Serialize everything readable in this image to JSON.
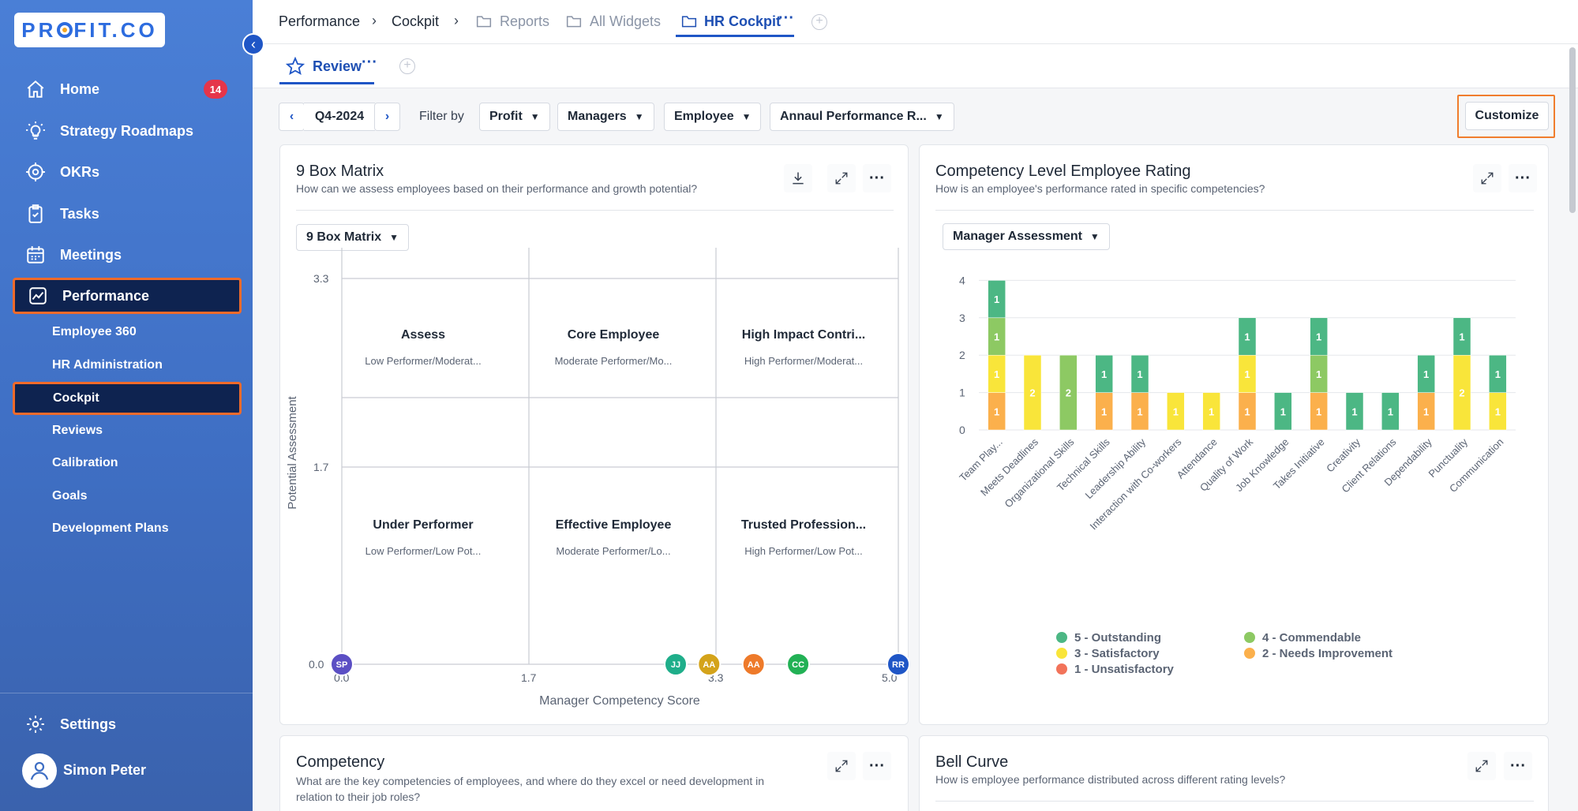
{
  "brand": {
    "logo_text_pre": "PR",
    "logo_text_post": "FIT.CO"
  },
  "sidebar": {
    "items": [
      {
        "label": "Home",
        "icon": "home-icon",
        "badge": "14"
      },
      {
        "label": "Strategy Roadmaps",
        "icon": "lightbulb-icon"
      },
      {
        "label": "OKRs",
        "icon": "target-icon"
      },
      {
        "label": "Tasks",
        "icon": "clipboard-icon"
      },
      {
        "label": "Meetings",
        "icon": "calendar-icon"
      },
      {
        "label": "Performance",
        "icon": "chart-line-icon",
        "active": true
      }
    ],
    "sub_items": [
      "Employee 360",
      "HR Administration",
      "Cockpit",
      "Reviews",
      "Calibration",
      "Goals",
      "Development Plans"
    ],
    "active_sub": "Cockpit",
    "settings_label": "Settings",
    "user_name": "Simon Peter"
  },
  "breadcrumb": {
    "performance": "Performance",
    "cockpit": "Cockpit",
    "reports": "Reports",
    "all_widgets": "All Widgets",
    "hr_cockpit": "HR Cockpit"
  },
  "subtab": {
    "label": "Review"
  },
  "filters": {
    "period": "Q4-2024",
    "filter_by": "Filter by",
    "profit": "Profit",
    "managers": "Managers",
    "employee": "Employee",
    "annual": "Annaul Performance R...",
    "customize": "Customize"
  },
  "nine_box": {
    "title": "9 Box Matrix",
    "subtitle": "How can we assess employees based on their performance and growth potential?",
    "dropdown": "9 Box Matrix",
    "y_axis_label": "Potential Assessment",
    "x_axis_label": "Manager Competency Score",
    "y_ticks": [
      "3.3",
      "1.7",
      "0.0"
    ],
    "x_ticks": [
      "0.0",
      "1.7",
      "3.3",
      "5.0"
    ],
    "boxes": [
      {
        "title": "Assess",
        "sub": "Low Performer/Moderat..."
      },
      {
        "title": "Core Employee",
        "sub": "Moderate Performer/Mo..."
      },
      {
        "title": "High Impact Contri...",
        "sub": "High Performer/Moderat..."
      },
      {
        "title": "Under Performer",
        "sub": "Low Performer/Low Pot..."
      },
      {
        "title": "Effective Employee",
        "sub": "Moderate Performer/Lo..."
      },
      {
        "title": "Trusted Profession...",
        "sub": "High Performer/Low Pot..."
      }
    ],
    "employees": [
      {
        "initials": "SP",
        "x": 0.0,
        "y": 0.0,
        "color": "#5b4fc4"
      },
      {
        "initials": "JJ",
        "x": 3.0,
        "y": 0.0,
        "color": "#1fae8a"
      },
      {
        "initials": "AA",
        "x": 3.3,
        "y": 0.0,
        "color": "#d4a31a"
      },
      {
        "initials": "AA",
        "x": 3.7,
        "y": 0.0,
        "color": "#ee7a2a"
      },
      {
        "initials": "CC",
        "x": 4.1,
        "y": 0.0,
        "color": "#22b155"
      },
      {
        "initials": "RR",
        "x": 5.0,
        "y": 0.0,
        "color": "#1f56c6"
      }
    ]
  },
  "competency_rating": {
    "title": "Competency Level Employee Rating",
    "subtitle": "How is an employee's performance rated in specific competencies?",
    "dropdown": "Manager Assessment"
  },
  "competency_card": {
    "title": "Competency",
    "subtitle": "What are the key competencies of employees, and where do they excel or need development in relation to their job roles?"
  },
  "bell_curve": {
    "title": "Bell Curve",
    "subtitle": "How is employee performance distributed across different rating levels?"
  },
  "chart_data": {
    "type": "bar",
    "stacked": true,
    "categories": [
      "Team Play...",
      "Meets Deadlines",
      "Organizational Skills",
      "Technical Skills",
      "Leadership Ability",
      "Interaction with Co-workers",
      "Attendance",
      "Quality of Work",
      "Job Knowledge",
      "Takes Initiative",
      "Creativity",
      "Client Relations",
      "Dependability",
      "Punctuality",
      "Communication"
    ],
    "series": [
      {
        "name": "1 - Unsatisfactory",
        "color": "#f2735a",
        "values": [
          0,
          0,
          0,
          0,
          0,
          0,
          0,
          0,
          0,
          0,
          0,
          0,
          0,
          0,
          0
        ]
      },
      {
        "name": "2 - Needs Improvement",
        "color": "#fbb04c",
        "values": [
          1,
          0,
          0,
          1,
          1,
          0,
          0,
          1,
          0,
          1,
          0,
          0,
          1,
          0,
          0
        ]
      },
      {
        "name": "3 - Satisfactory",
        "color": "#f9e53a",
        "values": [
          1,
          2,
          0,
          0,
          0,
          1,
          1,
          1,
          0,
          0,
          0,
          0,
          0,
          2,
          1
        ]
      },
      {
        "name": "4 - Commendable",
        "color": "#8dc963",
        "values": [
          1,
          0,
          2,
          0,
          0,
          0,
          0,
          0,
          0,
          1,
          0,
          0,
          0,
          0,
          0
        ]
      },
      {
        "name": "5 - Outstanding",
        "color": "#4cb784",
        "values": [
          1,
          0,
          0,
          1,
          1,
          0,
          0,
          1,
          1,
          1,
          1,
          1,
          1,
          1,
          1
        ]
      }
    ],
    "ylim": [
      0,
      5
    ],
    "y_ticks": [
      "0",
      "1",
      "2",
      "3",
      "4",
      "5"
    ],
    "legend_position": "bottom"
  }
}
